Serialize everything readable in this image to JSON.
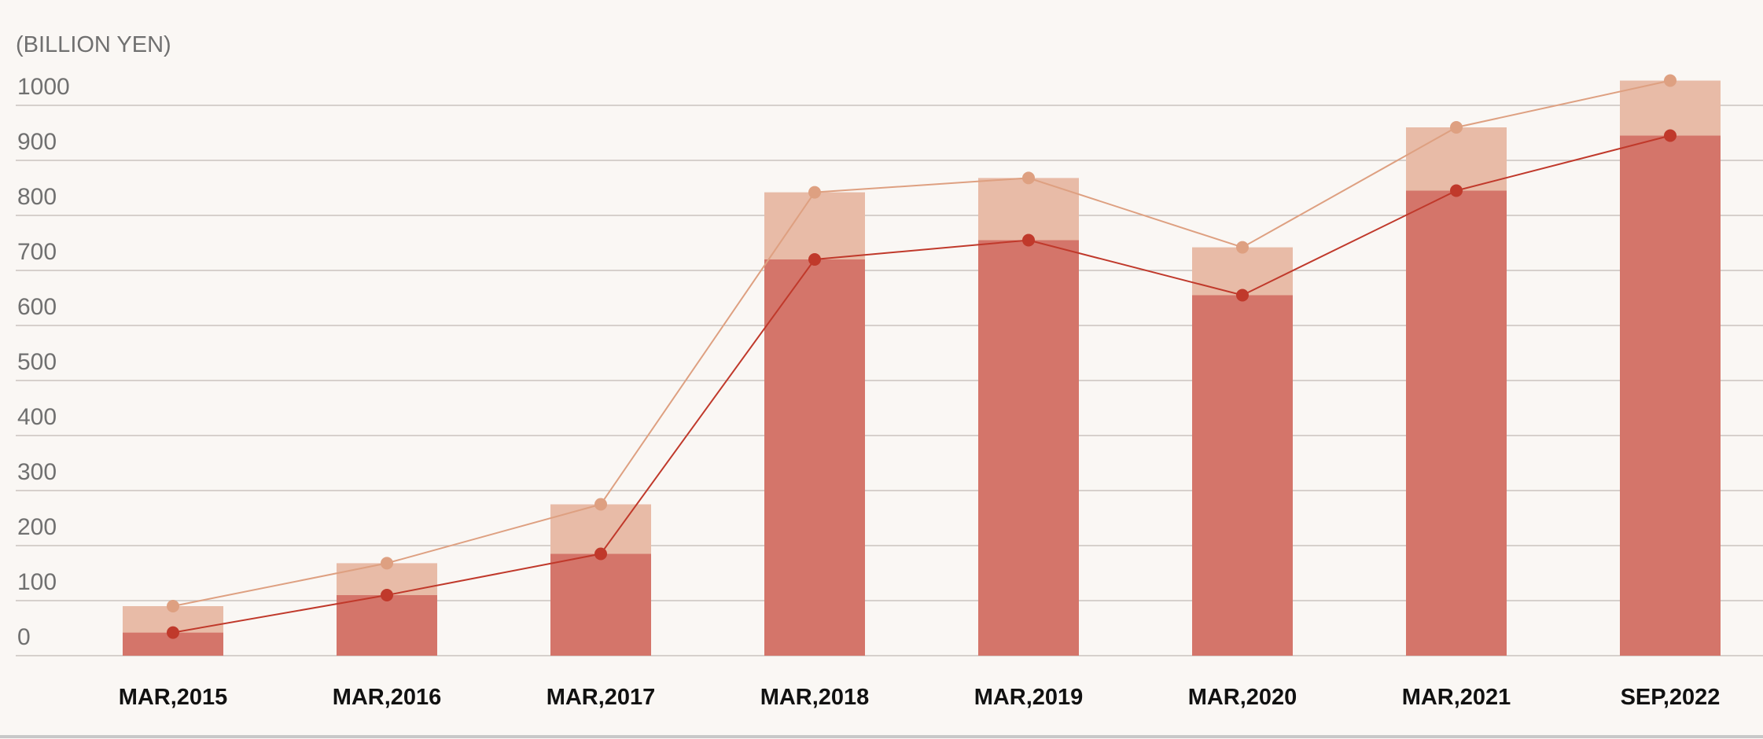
{
  "chart_data": {
    "type": "bar",
    "unit_label": "(BILLION YEN)",
    "categories": [
      "MAR,2015",
      "MAR,2016",
      "MAR,2017",
      "MAR,2018",
      "MAR,2019",
      "MAR,2020",
      "MAR,2021",
      "SEP,2022"
    ],
    "ylim": [
      0,
      1000
    ],
    "yticks": [
      0,
      100,
      200,
      300,
      400,
      500,
      600,
      700,
      800,
      900,
      1000
    ],
    "grid": true,
    "legend": "none",
    "series": [
      {
        "kind": "bar+line",
        "values": [
          42,
          110,
          185,
          720,
          755,
          655,
          845,
          945
        ],
        "bar_color": "#d4756a",
        "line_color": "#c0392b"
      },
      {
        "kind": "bar+line",
        "values": [
          90,
          168,
          275,
          842,
          868,
          742,
          960,
          1045
        ],
        "bar_color": "#e8bba7",
        "line_color": "#dea081"
      }
    ]
  }
}
